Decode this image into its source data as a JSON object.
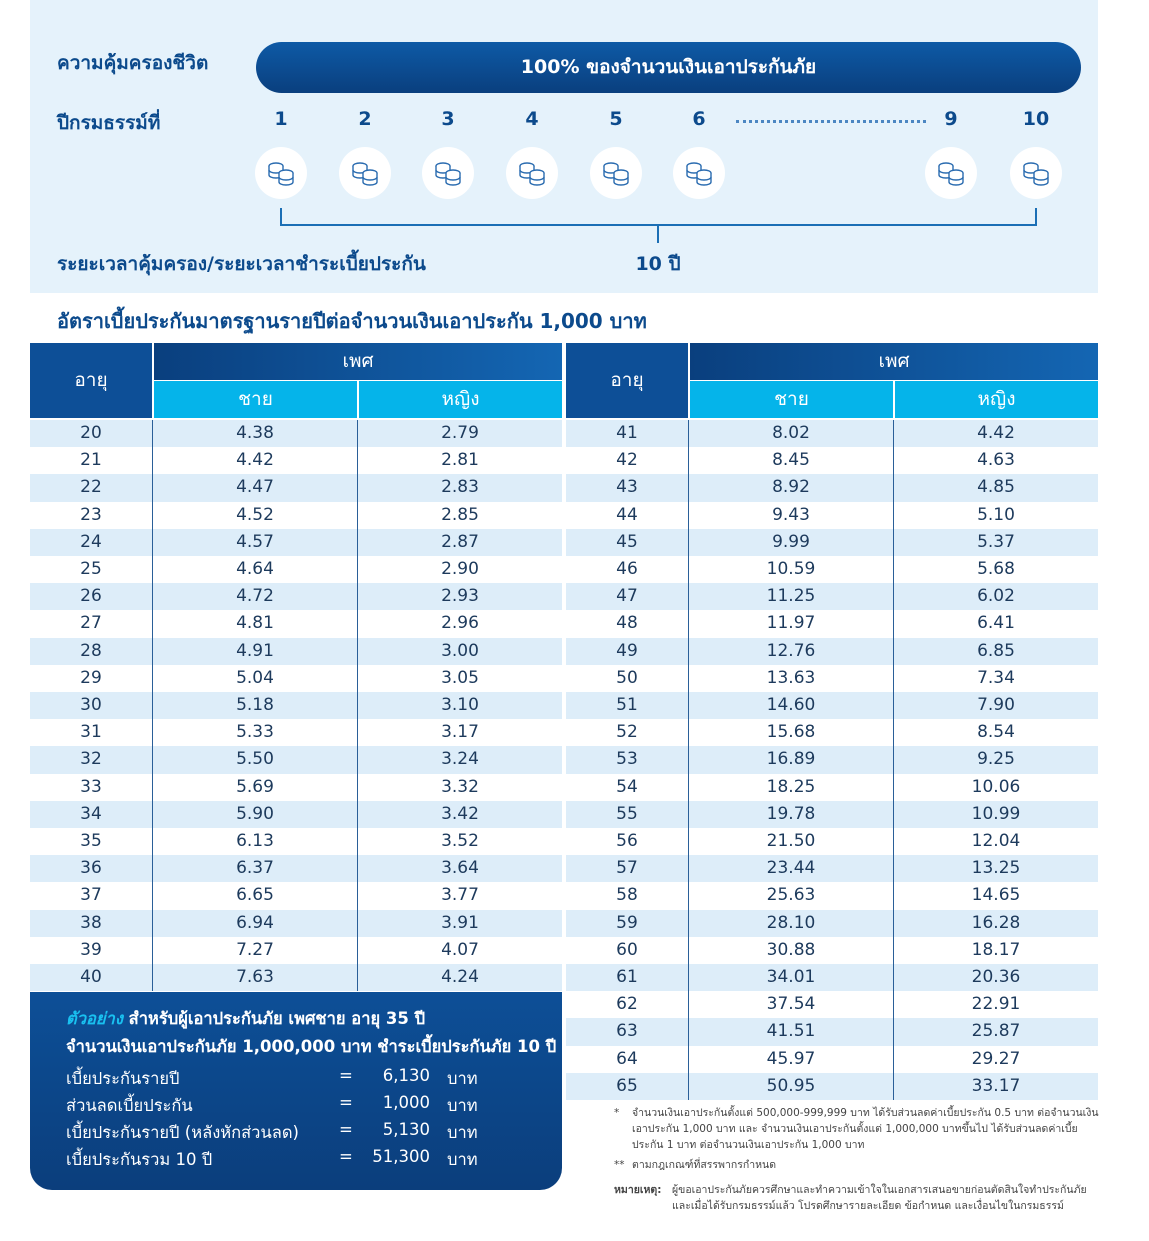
{
  "coverage": {
    "label": "ความคุ้มครองชีวิต",
    "bar": "100% ของจำนวนเงินเอาประกันภัย"
  },
  "policy_years": {
    "label": "ปีกรมธรรม์ที่",
    "years": [
      "1",
      "2",
      "3",
      "4",
      "5",
      "6",
      "9",
      "10"
    ]
  },
  "term": {
    "label": "ระยะเวลาคุ้มครอง/ระยะเวลาชำระเบี้ยประกัน",
    "value": "10 ปี"
  },
  "table": {
    "title": "อัตราเบี้ยประกันมาตรฐานรายปีต่อจำนวนเงินเอาประกัน 1,000 บาท",
    "header": {
      "age": "อายุ",
      "sex": "เพศ",
      "male": "ชาย",
      "female": "หญิง"
    },
    "left_rows": [
      [
        "20",
        "4.38",
        "2.79"
      ],
      [
        "21",
        "4.42",
        "2.81"
      ],
      [
        "22",
        "4.47",
        "2.83"
      ],
      [
        "23",
        "4.52",
        "2.85"
      ],
      [
        "24",
        "4.57",
        "2.87"
      ],
      [
        "25",
        "4.64",
        "2.90"
      ],
      [
        "26",
        "4.72",
        "2.93"
      ],
      [
        "27",
        "4.81",
        "2.96"
      ],
      [
        "28",
        "4.91",
        "3.00"
      ],
      [
        "29",
        "5.04",
        "3.05"
      ],
      [
        "30",
        "5.18",
        "3.10"
      ],
      [
        "31",
        "5.33",
        "3.17"
      ],
      [
        "32",
        "5.50",
        "3.24"
      ],
      [
        "33",
        "5.69",
        "3.32"
      ],
      [
        "34",
        "5.90",
        "3.42"
      ],
      [
        "35",
        "6.13",
        "3.52"
      ],
      [
        "36",
        "6.37",
        "3.64"
      ],
      [
        "37",
        "6.65",
        "3.77"
      ],
      [
        "38",
        "6.94",
        "3.91"
      ],
      [
        "39",
        "7.27",
        "4.07"
      ],
      [
        "40",
        "7.63",
        "4.24"
      ]
    ],
    "right_rows": [
      [
        "41",
        "8.02",
        "4.42"
      ],
      [
        "42",
        "8.45",
        "4.63"
      ],
      [
        "43",
        "8.92",
        "4.85"
      ],
      [
        "44",
        "9.43",
        "5.10"
      ],
      [
        "45",
        "9.99",
        "5.37"
      ],
      [
        "46",
        "10.59",
        "5.68"
      ],
      [
        "47",
        "11.25",
        "6.02"
      ],
      [
        "48",
        "11.97",
        "6.41"
      ],
      [
        "49",
        "12.76",
        "6.85"
      ],
      [
        "50",
        "13.63",
        "7.34"
      ],
      [
        "51",
        "14.60",
        "7.90"
      ],
      [
        "52",
        "15.68",
        "8.54"
      ],
      [
        "53",
        "16.89",
        "9.25"
      ],
      [
        "54",
        "18.25",
        "10.06"
      ],
      [
        "55",
        "19.78",
        "10.99"
      ],
      [
        "56",
        "21.50",
        "12.04"
      ],
      [
        "57",
        "23.44",
        "13.25"
      ],
      [
        "58",
        "25.63",
        "14.65"
      ],
      [
        "59",
        "28.10",
        "16.28"
      ],
      [
        "60",
        "30.88",
        "18.17"
      ],
      [
        "61",
        "34.01",
        "20.36"
      ],
      [
        "62",
        "37.54",
        "22.91"
      ],
      [
        "63",
        "41.51",
        "25.87"
      ],
      [
        "64",
        "45.97",
        "29.27"
      ],
      [
        "65",
        "50.95",
        "33.17"
      ]
    ]
  },
  "example": {
    "tag": "ตัวอย่าง",
    "intro": "สำหรับผู้เอาประกันภัย เพศชาย อายุ 35 ปี",
    "line2": "จำนวนเงินเอาประกันภัย 1,000,000 บาท ชำระเบี้ยประกันภัย 10 ปี",
    "lines": [
      {
        "label": "เบี้ยประกันรายปี",
        "eq": "=",
        "amount": "6,130",
        "unit": "บาท"
      },
      {
        "label": "ส่วนลดเบี้ยประกัน",
        "eq": "=",
        "amount": "1,000",
        "unit": "บาท"
      },
      {
        "label": "เบี้ยประกันรายปี (หลังหักส่วนลด)",
        "eq": "=",
        "amount": "5,130",
        "unit": "บาท"
      },
      {
        "label": "เบี้ยประกันรวม 10 ปี",
        "eq": "=",
        "amount": "51,300",
        "unit": "บาท"
      }
    ]
  },
  "notes": [
    {
      "mark": "*",
      "text": "จำนวนเงินเอาประกันตั้งแต่ 500,000-999,999 บาท ได้รับส่วนลดค่าเบี้ยประกัน 0.5 บาท ต่อจำนวนเงินเอาประกัน 1,000 บาท และ จำนวนเงินเอาประกันตั้งแต่ 1,000,000 บาทขึ้นไป ได้รับส่วนลดค่าเบี้ยประกัน 1 บาท ต่อจำนวนเงินเอาประกัน 1,000 บาท"
    },
    {
      "mark": "**",
      "text": "ตามกฎเกณฑ์ที่สรรพากรกำหนด"
    },
    {
      "mark": "หมายเหตุ:",
      "text": "ผู้ขอเอาประกันภัยควรศึกษาและทำความเข้าใจในเอกสารเสนอขายก่อนตัดสินใจทำประกันภัย และเมื่อได้รับกรมธรรม์แล้ว โปรดศึกษารายละเอียด ข้อกำหนด และเงื่อนไขในกรมธรรม์"
    }
  ]
}
